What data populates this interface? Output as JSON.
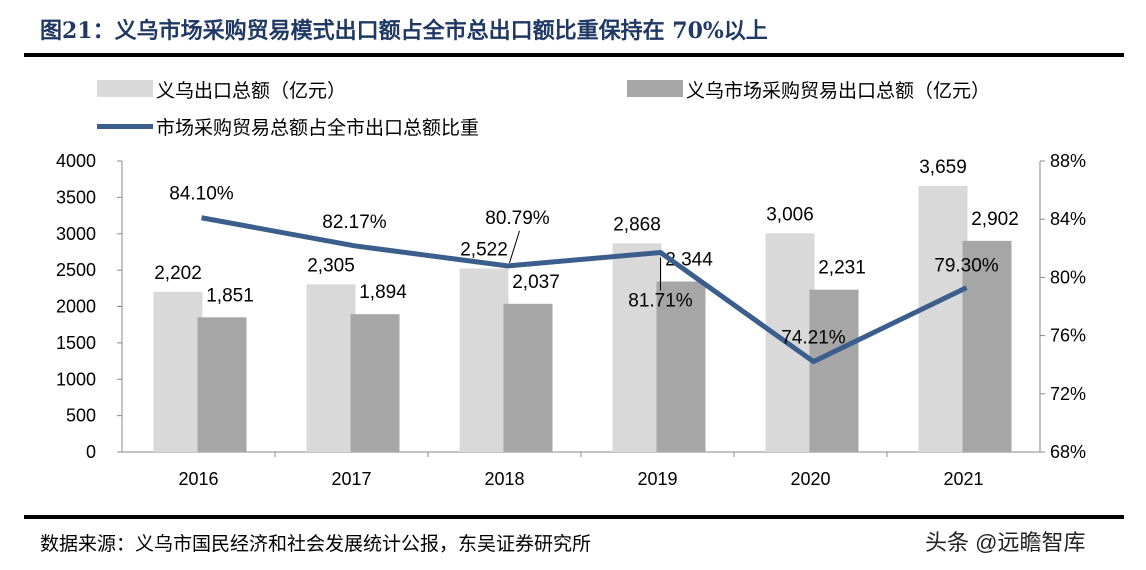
{
  "title": "图21：义乌市场采购贸易模式出口额占全市总出口额比重保持在 70%以上",
  "source": "数据来源：义乌市国民经济和社会发展统计公报，东吴证券研究所",
  "watermark": "头条 @远瞻智库",
  "chart_data": {
    "type": "bar+line",
    "categories": [
      "2016",
      "2017",
      "2018",
      "2019",
      "2020",
      "2021"
    ],
    "series": [
      {
        "name": "义乌出口总额（亿元）",
        "type": "bar",
        "axis": "left",
        "color": "#d9d9d9",
        "values": [
          2202,
          2305,
          2522,
          2868,
          3006,
          3659
        ],
        "labels": [
          "2,202",
          "2,305",
          "2,522",
          "2,868",
          "3,006",
          "3,659"
        ]
      },
      {
        "name": "义乌市场采购贸易出口总额（亿元）",
        "type": "bar",
        "axis": "left",
        "color": "#a6a6a6",
        "values": [
          1851,
          1894,
          2037,
          2344,
          2231,
          2902
        ],
        "labels": [
          "1,851",
          "1,894",
          "2,037",
          "2,344",
          "2,231",
          "2,902"
        ]
      },
      {
        "name": "市场采购贸易总额占全市出口总额比重",
        "type": "line",
        "axis": "right",
        "color": "#3b5e8c",
        "values": [
          84.1,
          82.17,
          80.79,
          81.71,
          74.21,
          79.3
        ],
        "labels": [
          "84.10%",
          "82.17%",
          "80.79%",
          "81.71%",
          "74.21%",
          "79.30%"
        ]
      }
    ],
    "left_axis": {
      "min": 0,
      "max": 4000,
      "ticks": [
        "0",
        "500",
        "1000",
        "1500",
        "2000",
        "2500",
        "3000",
        "3500",
        "4000"
      ]
    },
    "right_axis": {
      "min": 68,
      "max": 88,
      "ticks": [
        "68%",
        "72%",
        "76%",
        "80%",
        "84%",
        "88%"
      ]
    },
    "grid": false,
    "legend": "top"
  }
}
